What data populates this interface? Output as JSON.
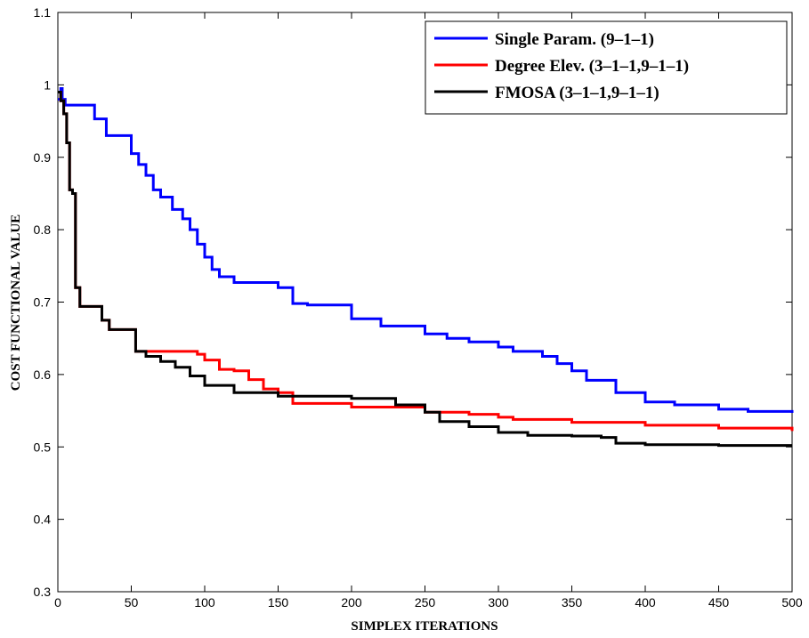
{
  "chart_data": {
    "type": "line",
    "title": "",
    "xlabel": "SIMPLEX ITERATIONS",
    "ylabel": "COST FUNCTIONAL VALUE",
    "xlim": [
      0,
      500
    ],
    "ylim": [
      0.3,
      1.1
    ],
    "xticks": [
      0,
      50,
      100,
      150,
      200,
      250,
      300,
      350,
      400,
      450,
      500
    ],
    "yticks": [
      0.3,
      0.4,
      0.5,
      0.6,
      0.7,
      0.8,
      0.9,
      1,
      1.1
    ],
    "grid": false,
    "legend_position": "top-right",
    "series": [
      {
        "name": "Single Param. (9–1–1)",
        "color": "#0000ff",
        "x": [
          0,
          2,
          3,
          5,
          25,
          33,
          50,
          55,
          60,
          65,
          70,
          78,
          85,
          90,
          95,
          100,
          105,
          110,
          120,
          150,
          160,
          170,
          200,
          220,
          250,
          265,
          280,
          300,
          310,
          330,
          340,
          350,
          360,
          380,
          400,
          420,
          450,
          470,
          500
        ],
        "y": [
          0.98,
          0.995,
          0.98,
          0.972,
          0.953,
          0.93,
          0.905,
          0.89,
          0.875,
          0.855,
          0.845,
          0.828,
          0.815,
          0.8,
          0.78,
          0.762,
          0.745,
          0.735,
          0.727,
          0.72,
          0.698,
          0.696,
          0.677,
          0.667,
          0.656,
          0.65,
          0.645,
          0.638,
          0.632,
          0.625,
          0.615,
          0.605,
          0.592,
          0.575,
          0.562,
          0.558,
          0.552,
          0.549,
          0.547
        ]
      },
      {
        "name": "Degree Elev. (3–1–1,9–1–1)",
        "color": "#ff0000",
        "x": [
          0,
          2,
          4,
          6,
          8,
          10,
          12,
          15,
          25,
          30,
          35,
          52,
          53,
          60,
          85,
          95,
          100,
          110,
          120,
          130,
          140,
          150,
          160,
          200,
          250,
          280,
          300,
          310,
          350,
          400,
          450,
          500
        ],
        "y": [
          0.99,
          0.978,
          0.96,
          0.92,
          0.855,
          0.85,
          0.72,
          0.694,
          0.694,
          0.675,
          0.662,
          0.662,
          0.632,
          0.632,
          0.632,
          0.628,
          0.62,
          0.607,
          0.605,
          0.593,
          0.58,
          0.575,
          0.56,
          0.555,
          0.548,
          0.545,
          0.541,
          0.538,
          0.534,
          0.53,
          0.526,
          0.522
        ]
      },
      {
        "name": "FMOSA (3–1–1,9–1–1)",
        "color": "#000000",
        "x": [
          0,
          2,
          4,
          6,
          8,
          10,
          12,
          15,
          25,
          30,
          35,
          52,
          53,
          60,
          70,
          80,
          90,
          100,
          120,
          150,
          200,
          230,
          250,
          260,
          280,
          300,
          320,
          350,
          370,
          380,
          400,
          450,
          500
        ],
        "y": [
          0.99,
          0.978,
          0.96,
          0.92,
          0.855,
          0.85,
          0.72,
          0.694,
          0.694,
          0.675,
          0.662,
          0.662,
          0.632,
          0.625,
          0.618,
          0.61,
          0.598,
          0.585,
          0.575,
          0.57,
          0.567,
          0.558,
          0.548,
          0.535,
          0.528,
          0.52,
          0.516,
          0.515,
          0.513,
          0.505,
          0.503,
          0.502,
          0.502
        ]
      }
    ]
  }
}
